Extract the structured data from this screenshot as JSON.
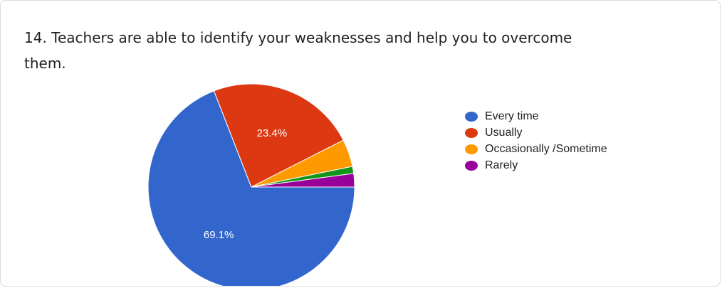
{
  "question": {
    "text": "14. Teachers are able to identify your weaknesses and help you to overcome them."
  },
  "chart_data": {
    "type": "pie",
    "slices": [
      {
        "label": "Every time",
        "value": 69.1,
        "color": "#3366cc",
        "data_label": "69.1%"
      },
      {
        "label": "Usually",
        "value": 23.4,
        "color": "#dc3912",
        "data_label": "23.4%"
      },
      {
        "label": "Occasionally /Sometime",
        "value": 4.3,
        "color": "#ff9900",
        "data_label": ""
      },
      {
        "label": "",
        "value": 1.1,
        "color": "#109618",
        "data_label": ""
      },
      {
        "label": "Rarely",
        "value": 2.1,
        "color": "#990099",
        "data_label": ""
      }
    ],
    "legend_position": "right"
  }
}
